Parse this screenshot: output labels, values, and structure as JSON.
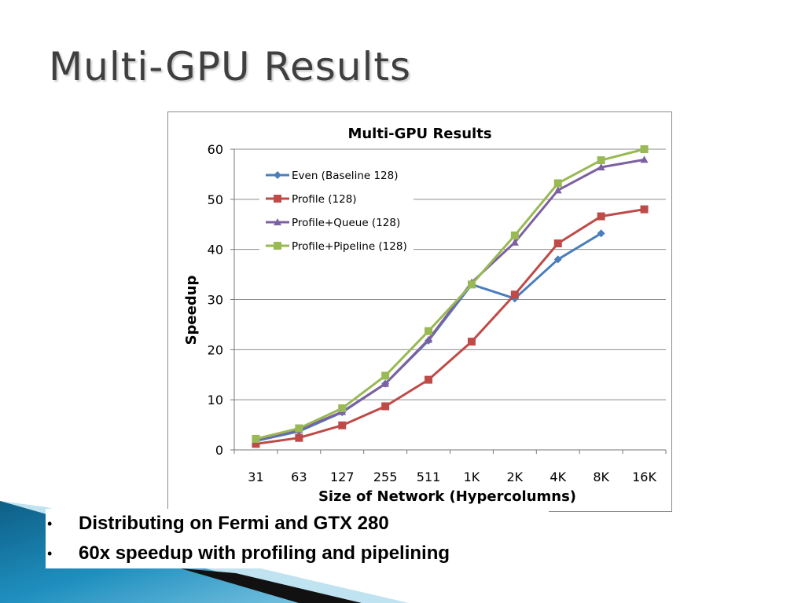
{
  "slide": {
    "title": "Multi-GPU Results",
    "bullets": [
      "Distributing on Fermi and GTX 280",
      "60x speedup with profiling and pipelining"
    ]
  },
  "colors": {
    "title_text": "#3f3f3f",
    "gridline": "#8c8c8c",
    "deco_teal": "#1f8fbf",
    "deco_light": "#bfe3f0"
  },
  "chart_data": {
    "type": "line",
    "title": "Multi-GPU Results",
    "xlabel": "Size of Network (Hypercolumns)",
    "ylabel": "Speedup",
    "categories": [
      "31",
      "63",
      "127",
      "255",
      "511",
      "1K",
      "2K",
      "4K",
      "8K",
      "16K"
    ],
    "ylim": [
      0,
      60
    ],
    "yticks": [
      0,
      10,
      20,
      30,
      40,
      50,
      60
    ],
    "grid": true,
    "legend_position": "top-left",
    "series": [
      {
        "name": "Even (Baseline 128)",
        "color": "#4a7ebb",
        "marker": "diamond",
        "values": [
          1.8,
          3.7,
          7.5,
          13.2,
          21.8,
          33.0,
          30.2,
          38.0,
          43.2,
          null
        ]
      },
      {
        "name": "Profile (128)",
        "color": "#be4b48",
        "marker": "square",
        "values": [
          1.2,
          2.4,
          4.9,
          8.7,
          14.0,
          21.6,
          31.0,
          41.2,
          46.6,
          48.0
        ]
      },
      {
        "name": "Profile+Queue (128)",
        "color": "#7d60a0",
        "marker": "triangle",
        "values": [
          2.0,
          4.0,
          7.6,
          13.2,
          22.0,
          33.4,
          41.4,
          51.8,
          56.4,
          57.9
        ]
      },
      {
        "name": "Profile+Pipeline (128)",
        "color": "#98b954",
        "marker": "square",
        "values": [
          2.2,
          4.3,
          8.3,
          14.8,
          23.7,
          33.0,
          42.8,
          53.2,
          57.8,
          60.0
        ]
      }
    ]
  }
}
